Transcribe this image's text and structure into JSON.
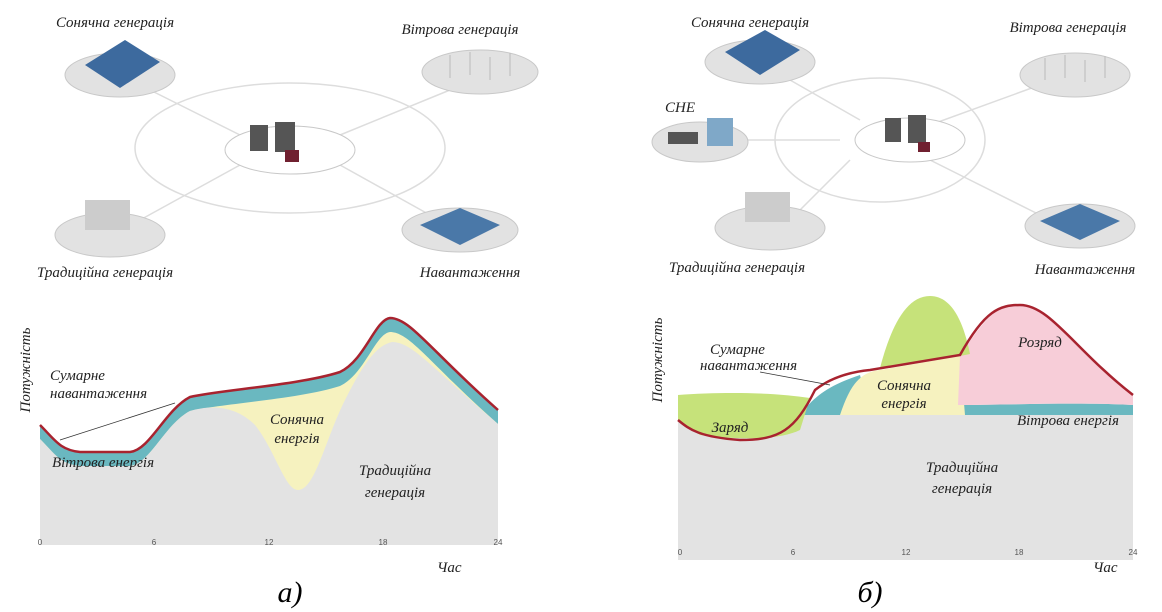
{
  "panels": [
    {
      "caption": "а)",
      "nodes": [
        "Сонячна генерація",
        "Вітрова генерація",
        "Традиційна генерація",
        "Навантаження"
      ],
      "chart": {
        "y_label": "Потужність",
        "x_label": "Час",
        "x_ticks": [
          "0",
          "6",
          "12",
          "18",
          "24"
        ],
        "annotations": [
          [
            "Сумарне",
            "навантаження"
          ],
          [
            "Сонячна",
            "енергія"
          ],
          [
            "Вітрова енергія"
          ],
          [
            "Традиційна",
            "генерація"
          ]
        ]
      }
    },
    {
      "caption": "б)",
      "nodes": [
        "Сонячна генерація",
        "Вітрова генерація",
        "СНЕ",
        "Традиційна генерація",
        "Навантаження"
      ],
      "chart": {
        "y_label": "Потужність",
        "x_label": "Час",
        "x_ticks": [
          "0",
          "6",
          "12",
          "18",
          "24"
        ],
        "annotations": [
          [
            "Сумарне",
            "навантаження"
          ],
          [
            "Сонячна",
            "енергія"
          ],
          [
            "Розряд"
          ],
          [
            "Заряд"
          ],
          [
            "Вітрова енергія"
          ],
          [
            "Традиційна",
            "генерація"
          ]
        ]
      }
    }
  ]
}
